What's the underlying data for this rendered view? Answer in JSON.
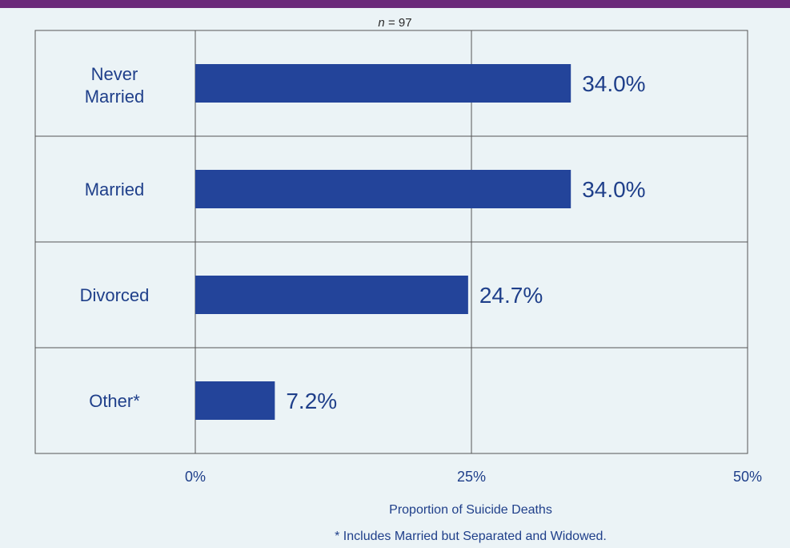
{
  "subtitle": {
    "n_symbol": "n",
    "n_value": "= 97"
  },
  "footnote": "* Includes Married but Separated and Widowed.",
  "colors": {
    "bar": "#23449a",
    "text": "#1f3f8a",
    "grid": "#555555",
    "band": "#6b2a7a",
    "background": "#ebf3f6"
  },
  "chart_data": {
    "type": "bar",
    "orientation": "horizontal",
    "categories": [
      "Never Married",
      "Married",
      "Divorced",
      "Other*"
    ],
    "values": [
      34.0,
      34.0,
      24.7,
      7.2
    ],
    "value_labels": [
      "34.0%",
      "34.0%",
      "24.7%",
      "7.2%"
    ],
    "xlabel": "Proportion of Suicide Deaths",
    "xlim": [
      0,
      50
    ],
    "xticks": [
      0,
      25,
      50
    ],
    "xtick_labels": [
      "0%",
      "25%",
      "50%"
    ],
    "grid": true
  }
}
